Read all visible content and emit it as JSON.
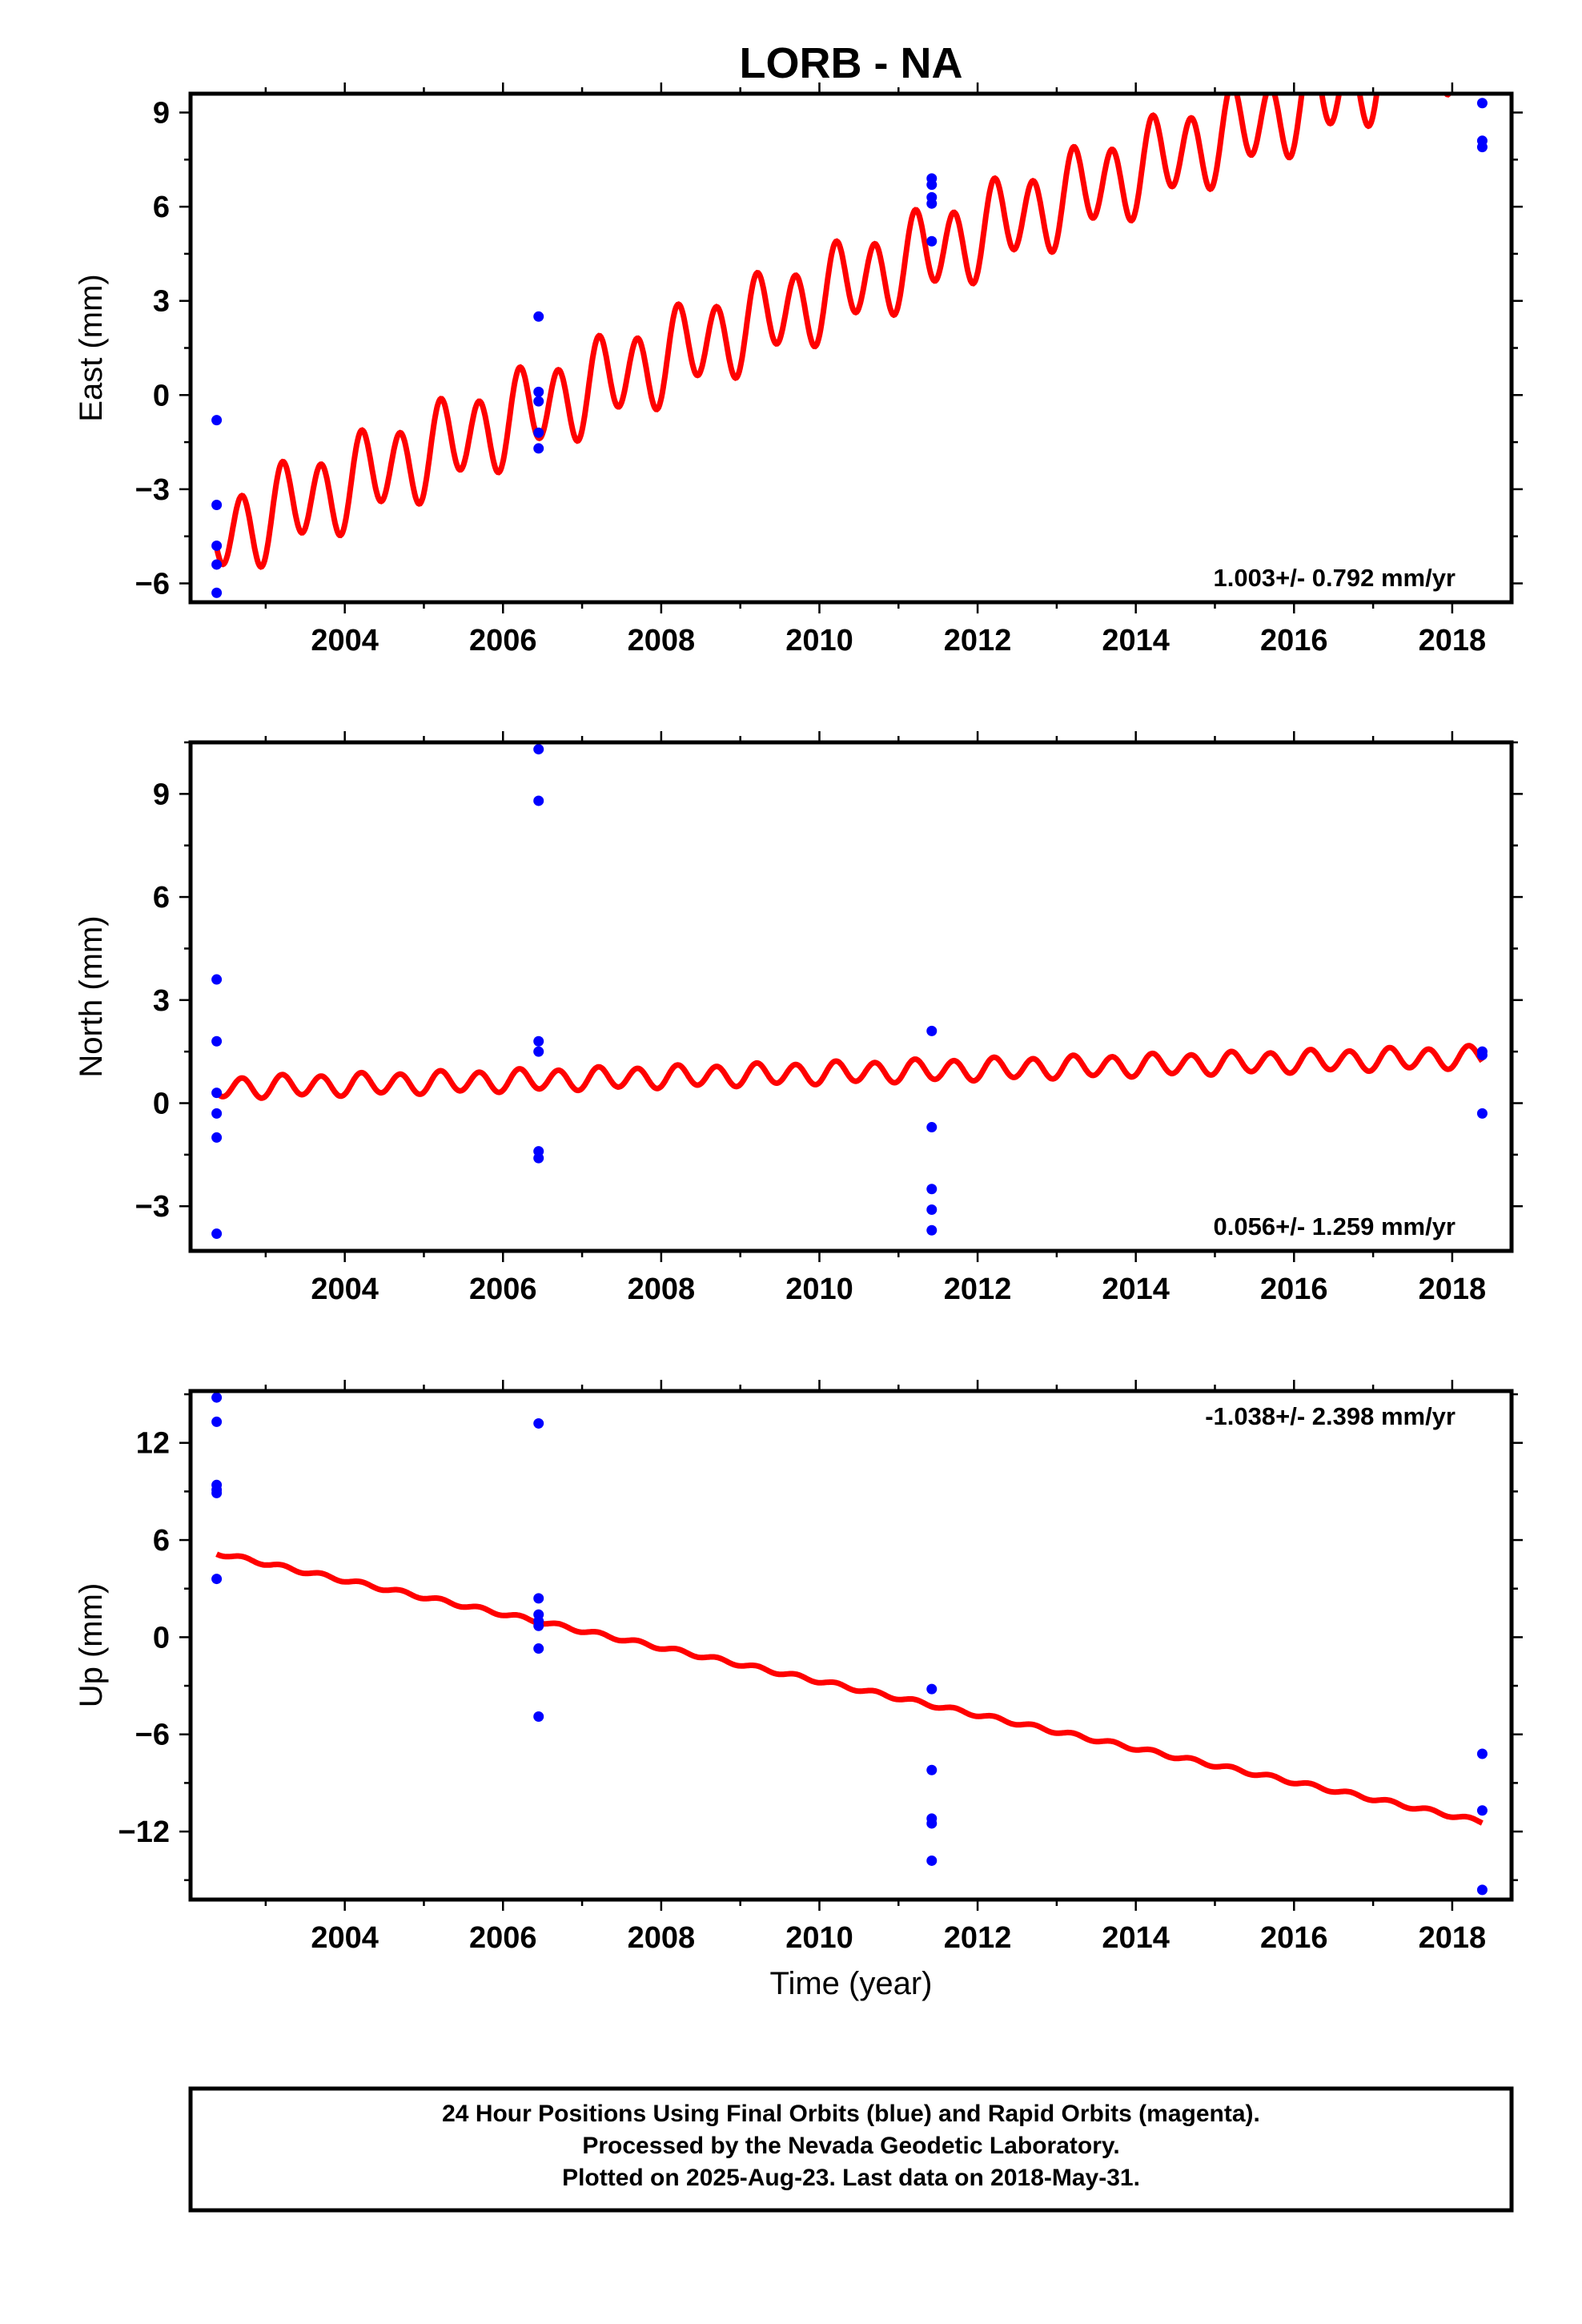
{
  "title": "LORB - NA",
  "colors": {
    "final_orbits": "#0000ff",
    "model": "#ff0000",
    "frame": "#000000"
  },
  "x_axis": {
    "label": "Time (year)",
    "range": [
      2002.05,
      2018.75
    ],
    "ticks": [
      2004,
      2006,
      2008,
      2010,
      2012,
      2014,
      2016,
      2018
    ],
    "tick_labels": [
      "2004",
      "2006",
      "2008",
      "2010",
      "2012",
      "2014",
      "2016",
      "2018"
    ]
  },
  "chart_data": [
    {
      "type": "scatter",
      "name": "east",
      "ylabel": "East (mm)",
      "ylim": [
        -6.6,
        9.6
      ],
      "yticks": [
        -6,
        -3,
        0,
        3,
        6,
        9
      ],
      "ytick_labels": [
        "−6",
        "−3",
        "0",
        "3",
        "6",
        "9"
      ],
      "velocity_label": "1.003+/- 0.792 mm/yr",
      "velocity_label_position": "bottom-right",
      "points": [
        {
          "x": 2002.38,
          "y": -0.8
        },
        {
          "x": 2002.38,
          "y": -3.5
        },
        {
          "x": 2002.38,
          "y": -4.8
        },
        {
          "x": 2002.38,
          "y": -5.4
        },
        {
          "x": 2002.38,
          "y": -6.3
        },
        {
          "x": 2006.45,
          "y": 2.5
        },
        {
          "x": 2006.45,
          "y": 0.1
        },
        {
          "x": 2006.45,
          "y": -0.2
        },
        {
          "x": 2006.45,
          "y": -1.2
        },
        {
          "x": 2006.45,
          "y": -1.7
        },
        {
          "x": 2011.42,
          "y": 6.9
        },
        {
          "x": 2011.42,
          "y": 6.7
        },
        {
          "x": 2011.42,
          "y": 6.3
        },
        {
          "x": 2011.42,
          "y": 6.1
        },
        {
          "x": 2011.42,
          "y": 4.9
        },
        {
          "x": 2018.38,
          "y": 9.3
        },
        {
          "x": 2018.38,
          "y": 8.1
        },
        {
          "x": 2018.38,
          "y": 7.9
        }
      ],
      "model": {
        "x_range": [
          2002.38,
          2018.38
        ],
        "y_at_start": -4.5,
        "velocity": 1.003,
        "annual_amplitude": 0.4,
        "semiannual_amplitude": 1.25,
        "phase": 0.3
      }
    },
    {
      "type": "scatter",
      "name": "north",
      "ylabel": "North (mm)",
      "ylim": [
        -4.3,
        10.5
      ],
      "yticks": [
        -3,
        0,
        3,
        6,
        9
      ],
      "ytick_labels": [
        "−3",
        "0",
        "3",
        "6",
        "9"
      ],
      "velocity_label": "0.056+/- 1.259 mm/yr",
      "velocity_label_position": "bottom-right",
      "points": [
        {
          "x": 2002.38,
          "y": 3.6
        },
        {
          "x": 2002.38,
          "y": 1.8
        },
        {
          "x": 2002.38,
          "y": 0.3
        },
        {
          "x": 2002.38,
          "y": -0.3
        },
        {
          "x": 2002.38,
          "y": -1.0
        },
        {
          "x": 2002.38,
          "y": -3.8
        },
        {
          "x": 2006.45,
          "y": 10.3
        },
        {
          "x": 2006.45,
          "y": 8.8
        },
        {
          "x": 2006.45,
          "y": 1.8
        },
        {
          "x": 2006.45,
          "y": 1.5
        },
        {
          "x": 2006.45,
          "y": -1.4
        },
        {
          "x": 2006.45,
          "y": -1.6
        },
        {
          "x": 2011.42,
          "y": 2.1
        },
        {
          "x": 2011.42,
          "y": -0.7
        },
        {
          "x": 2011.42,
          "y": -2.5
        },
        {
          "x": 2011.42,
          "y": -3.1
        },
        {
          "x": 2011.42,
          "y": -3.7
        },
        {
          "x": 2018.38,
          "y": 1.5
        },
        {
          "x": 2018.38,
          "y": 1.4
        },
        {
          "x": 2018.38,
          "y": -0.3
        }
      ],
      "model": {
        "x_range": [
          2002.38,
          2018.38
        ],
        "y_at_start": 0.45,
        "velocity": 0.056,
        "annual_amplitude": 0.05,
        "semiannual_amplitude": 0.3,
        "phase": 0.3
      }
    },
    {
      "type": "scatter",
      "name": "up",
      "ylabel": "Up (mm)",
      "ylim": [
        -16.2,
        15.2
      ],
      "yticks": [
        -12,
        -6,
        0,
        6,
        12
      ],
      "ytick_labels": [
        "−12",
        "−6",
        "0",
        "6",
        "12"
      ],
      "velocity_label": "-1.038+/- 2.398 mm/yr",
      "velocity_label_position": "top-right",
      "points": [
        {
          "x": 2002.38,
          "y": 14.8
        },
        {
          "x": 2002.38,
          "y": 13.3
        },
        {
          "x": 2002.38,
          "y": 9.4
        },
        {
          "x": 2002.38,
          "y": 9.1
        },
        {
          "x": 2002.38,
          "y": 8.9
        },
        {
          "x": 2002.38,
          "y": 3.6
        },
        {
          "x": 2006.45,
          "y": 13.2
        },
        {
          "x": 2006.45,
          "y": 2.4
        },
        {
          "x": 2006.45,
          "y": 1.4
        },
        {
          "x": 2006.45,
          "y": 1.0
        },
        {
          "x": 2006.45,
          "y": 0.7
        },
        {
          "x": 2006.45,
          "y": -0.7
        },
        {
          "x": 2006.45,
          "y": -4.9
        },
        {
          "x": 2011.42,
          "y": -3.2
        },
        {
          "x": 2011.42,
          "y": -8.2
        },
        {
          "x": 2011.42,
          "y": -11.2
        },
        {
          "x": 2011.42,
          "y": -11.5
        },
        {
          "x": 2011.42,
          "y": -13.8
        },
        {
          "x": 2018.38,
          "y": -7.2
        },
        {
          "x": 2018.38,
          "y": -10.7
        },
        {
          "x": 2018.38,
          "y": -15.6
        }
      ],
      "model": {
        "x_range": [
          2002.38,
          2018.38
        ],
        "y_at_start": 5.2,
        "velocity": -1.038,
        "annual_amplitude": 0.0,
        "semiannual_amplitude": 0.12,
        "phase": 0.3
      }
    }
  ],
  "footer": {
    "line1": "24 Hour Positions Using Final Orbits (blue) and Rapid Orbits (magenta).",
    "line2": "Processed by the Nevada Geodetic Laboratory.",
    "line3": "Plotted on 2025-Aug-23. Last data on 2018-May-31."
  }
}
